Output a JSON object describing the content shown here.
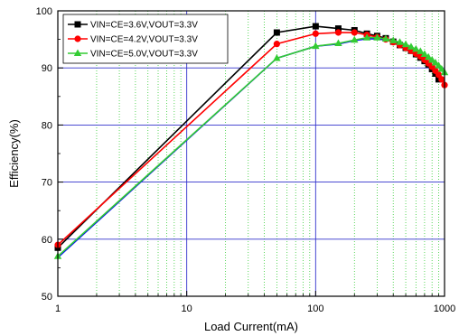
{
  "chart_data": {
    "type": "line",
    "title": "",
    "xlabel": "Load Current(mA)",
    "ylabel": "Efficiency(%)",
    "x_scale": "log",
    "xlim": [
      1,
      1000
    ],
    "ylim": [
      50,
      100
    ],
    "x_ticks": [
      1,
      10,
      100,
      1000
    ],
    "x_tick_labels": [
      "1",
      "10",
      "100",
      "1000"
    ],
    "y_ticks": [
      50,
      60,
      70,
      80,
      90,
      100
    ],
    "y_tick_labels": [
      "50",
      "60",
      "70",
      "80",
      "90",
      "100"
    ],
    "grid": true,
    "legend_position": "top-left",
    "series": [
      {
        "name": "VIN=CE=3.6V,VOUT=3.3V",
        "color": "#000000",
        "marker": "square",
        "x": [
          1,
          50,
          100,
          150,
          200,
          250,
          300,
          350,
          400,
          450,
          500,
          550,
          600,
          650,
          700,
          750,
          800,
          850,
          900
        ],
        "y": [
          58.5,
          96.2,
          97.3,
          96.9,
          96.6,
          96.0,
          95.6,
          95.2,
          94.6,
          94.0,
          93.5,
          93.0,
          92.4,
          91.8,
          91.2,
          90.6,
          89.8,
          89.0,
          88.0
        ]
      },
      {
        "name": "VIN=CE=4.2V,VOUT=3.3V",
        "color": "#ff0000",
        "marker": "circle",
        "x": [
          1,
          50,
          100,
          150,
          200,
          250,
          300,
          350,
          400,
          450,
          500,
          550,
          600,
          650,
          700,
          750,
          800,
          850,
          900,
          950,
          1000
        ],
        "y": [
          59.0,
          94.2,
          96.0,
          96.2,
          96.2,
          95.8,
          95.4,
          95.0,
          94.5,
          94.0,
          93.5,
          93.0,
          92.5,
          92.0,
          91.4,
          90.8,
          90.2,
          89.5,
          88.8,
          88.0,
          87.0
        ]
      },
      {
        "name": "VIN=CE=5.0V,VOUT=3.3V",
        "color": "#33cc33",
        "marker": "triangle",
        "x": [
          1,
          50,
          100,
          150,
          200,
          250,
          300,
          350,
          400,
          450,
          500,
          550,
          600,
          650,
          700,
          750,
          800,
          850,
          900,
          950,
          1000
        ],
        "y": [
          57.0,
          91.7,
          93.8,
          94.3,
          94.9,
          95.3,
          95.3,
          95.1,
          94.8,
          94.5,
          94.1,
          93.7,
          93.3,
          92.9,
          92.4,
          91.9,
          91.4,
          90.9,
          90.4,
          89.8,
          89.2
        ]
      },
      {
        "name": "",
        "color": "#0000ff",
        "marker": "none",
        "x": [
          1,
          50,
          100,
          150,
          200,
          250,
          300,
          350,
          400,
          450,
          500,
          550,
          600,
          650,
          700,
          750,
          800,
          850,
          900,
          950,
          1000
        ],
        "y": [
          56.8,
          91.7,
          93.8,
          94.2,
          94.8,
          95.1,
          95.1,
          94.9,
          94.6,
          94.3,
          93.9,
          93.5,
          93.1,
          92.7,
          92.2,
          91.7,
          91.2,
          90.7,
          90.2,
          89.6,
          89.0
        ]
      }
    ]
  }
}
